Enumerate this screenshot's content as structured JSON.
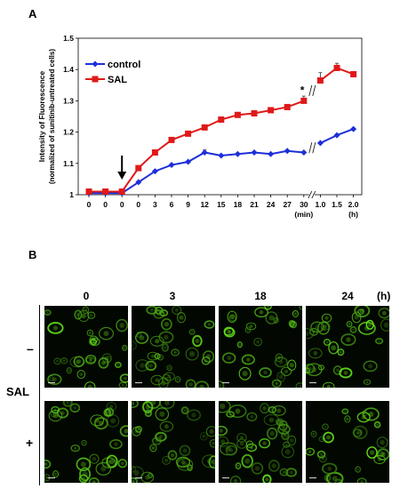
{
  "panels": {
    "a_label": "A",
    "b_label": "B"
  },
  "chart_data": {
    "type": "line",
    "ylabel_line1": "Intensity of Fluorescence",
    "ylabel_line2": "(normalized of sunitinib-untreated cells)",
    "ylim": [
      1,
      1.5
    ],
    "yticks": [
      "1",
      "1.1",
      "1.2",
      "1.3",
      "1.4",
      "1.5"
    ],
    "x_labels": [
      "0",
      "0",
      "0",
      "0",
      "3",
      "6",
      "9",
      "12",
      "15",
      "18",
      "21",
      "24",
      "27",
      "30",
      "1.0",
      "1.5",
      "2.0"
    ],
    "min_unit": "(min)",
    "h_unit": "(h)",
    "series": [
      {
        "name": "control",
        "color": "#1e2fd8",
        "marker": "diamond",
        "values": [
          1.005,
          1.005,
          1.005,
          1.04,
          1.075,
          1.095,
          1.105,
          1.135,
          1.125,
          1.13,
          1.135,
          1.13,
          1.14,
          1.135,
          1.165,
          1.19,
          1.21
        ],
        "errors": [
          0,
          0,
          0,
          0,
          0,
          0,
          0,
          0.008,
          0,
          0,
          0,
          0,
          0,
          0,
          0,
          0,
          0
        ]
      },
      {
        "name": "SAL",
        "color": "#e01919",
        "marker": "square",
        "values": [
          1.01,
          1.01,
          1.01,
          1.085,
          1.135,
          1.175,
          1.195,
          1.215,
          1.24,
          1.255,
          1.26,
          1.27,
          1.28,
          1.3,
          1.365,
          1.405,
          1.385
        ],
        "errors": [
          0,
          0,
          0,
          0,
          0,
          0,
          0,
          0,
          0,
          0,
          0,
          0,
          0.008,
          0.015,
          0.025,
          0.015,
          0
        ]
      }
    ],
    "annotation": "*",
    "legend_position": "top-left",
    "arrow_at_index": 2
  },
  "micrographs": {
    "columns": [
      "0",
      "3",
      "18",
      "24"
    ],
    "col_unit": "(h)",
    "row_group_label": "SAL",
    "rows": [
      "–",
      "+"
    ]
  }
}
